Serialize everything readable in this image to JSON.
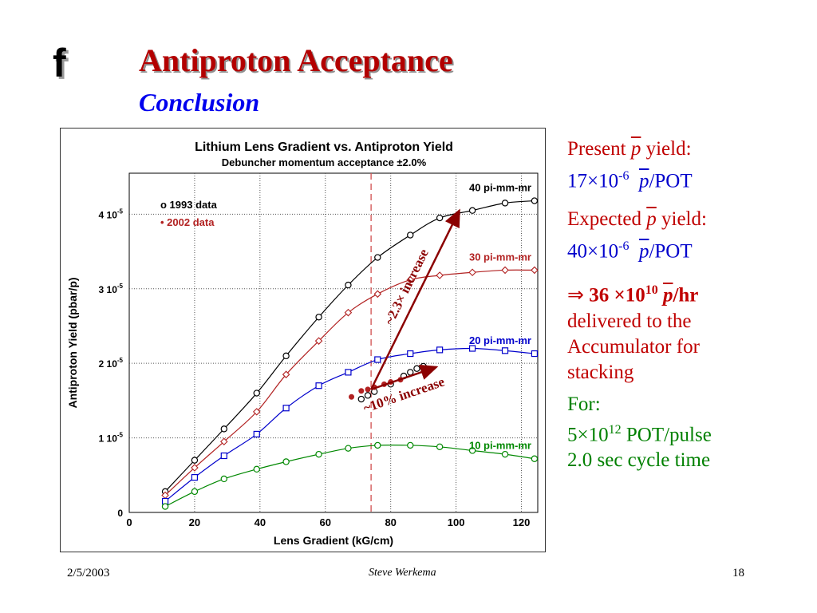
{
  "slide": {
    "logo": "f",
    "title": "Antiproton Acceptance",
    "subtitle": "Conclusion",
    "date": "2/5/2003",
    "author": "Steve Werkema",
    "page": "18"
  },
  "panel": {
    "present_label": "Present",
    "present_symbol": "p",
    "present_suffix": "yield:",
    "present_value_base": "17×10",
    "present_value_exp": "-6",
    "present_unit_symbol": "p",
    "present_unit": "/POT",
    "expected_label": "Expected",
    "expected_symbol": "p",
    "expected_suffix": "yield:",
    "expected_value_base": "40×10",
    "expected_value_exp": "-6",
    "expected_unit_symbol": "p",
    "expected_unit": "/POT",
    "arrow": "⇒",
    "rate_value_base": "36 ×10",
    "rate_value_exp": "10",
    "rate_unit_symbol": "p",
    "rate_unit": "/hr",
    "delivered_line1": "delivered to the",
    "delivered_line2": "Accumulator for",
    "delivered_line3": "stacking",
    "for_label": "For:",
    "pot_base": "5×10",
    "pot_exp": "12",
    "pot_unit": " POT/pulse",
    "cycle_time": "2.0 sec cycle time"
  },
  "colors": {
    "title": "#b30000",
    "subtitle": "#0000ee",
    "red_text": "#c00000",
    "green_text": "#008000",
    "arrow": "#8b0000",
    "marker_line": "#d05050"
  },
  "chart_data": {
    "type": "line",
    "title": "Lithium Lens Gradient vs. Antiproton Yield",
    "subtitle": "Debuncher momentum acceptance ±2.0%",
    "xlabel": "Lens Gradient (kG/cm)",
    "ylabel": "Antiproton Yield (pbar/p)",
    "xlim": [
      0,
      125
    ],
    "ylim": [
      0,
      4.55e-05
    ],
    "xticks": [
      "0",
      "20",
      "40",
      "60",
      "80",
      "100",
      "120"
    ],
    "yticks": [
      {
        "value": 0,
        "base": "0",
        "exp": ""
      },
      {
        "value": 1e-05,
        "base": "1 10",
        "exp": "-5"
      },
      {
        "value": 2e-05,
        "base": "2 10",
        "exp": "-5"
      },
      {
        "value": 3e-05,
        "base": "3 10",
        "exp": "-5"
      },
      {
        "value": 4e-05,
        "base": "4 10",
        "exp": "-5"
      }
    ],
    "grid": true,
    "legend": [
      {
        "name": "o 1993 data",
        "color": "#000000"
      },
      {
        "name": "• 2002 data",
        "color": "#b22222"
      }
    ],
    "series": [
      {
        "name": "40 pi-mm-mr",
        "color": "#000000",
        "marker": "circle",
        "x": [
          11,
          20,
          29,
          39,
          48,
          58,
          67,
          76,
          86,
          95,
          105,
          115,
          124
        ],
        "y": [
          2.8e-06,
          7e-06,
          1.12e-05,
          1.6e-05,
          2.1e-05,
          2.62e-05,
          3.05e-05,
          3.42e-05,
          3.72e-05,
          3.95e-05,
          4.05e-05,
          4.15e-05,
          4.18e-05
        ]
      },
      {
        "name": "30 pi-mm-mr",
        "color": "#b22222",
        "marker": "diamond",
        "x": [
          11,
          20,
          29,
          39,
          48,
          58,
          67,
          76,
          86,
          95,
          105,
          115,
          124
        ],
        "y": [
          2.3e-06,
          6e-06,
          9.5e-06,
          1.35e-05,
          1.85e-05,
          2.3e-05,
          2.68e-05,
          2.93e-05,
          3.12e-05,
          3.18e-05,
          3.22e-05,
          3.25e-05,
          3.25e-05
        ]
      },
      {
        "name": "20 pi-mm-mr",
        "color": "#0000cc",
        "marker": "square",
        "x": [
          11,
          20,
          29,
          39,
          48,
          58,
          67,
          76,
          86,
          95,
          105,
          115,
          124
        ],
        "y": [
          1.5e-06,
          4.7e-06,
          7.6e-06,
          1.05e-05,
          1.4e-05,
          1.7e-05,
          1.88e-05,
          2.05e-05,
          2.13e-05,
          2.18e-05,
          2.2e-05,
          2.17e-05,
          2.13e-05
        ]
      },
      {
        "name": "10 pi-mm-mr",
        "color": "#008800",
        "marker": "circle",
        "x": [
          11,
          20,
          29,
          39,
          48,
          58,
          67,
          76,
          86,
          95,
          105,
          115,
          124
        ],
        "y": [
          8e-07,
          2.8e-06,
          4.5e-06,
          5.8e-06,
          6.8e-06,
          7.8e-06,
          8.6e-06,
          9e-06,
          9e-06,
          8.8e-06,
          8.3e-06,
          7.8e-06,
          7.2e-06
        ]
      }
    ],
    "data_1993_points": {
      "x": [
        71,
        73,
        75,
        80,
        84,
        86,
        88,
        90
      ],
      "y": [
        1.52e-05,
        1.57e-05,
        1.62e-05,
        1.72e-05,
        1.83e-05,
        1.88e-05,
        1.93e-05,
        1.96e-05
      ]
    },
    "data_2002_points": {
      "x": [
        68,
        71,
        73,
        75,
        78,
        80,
        83
      ],
      "y": [
        1.55e-05,
        1.63e-05,
        1.65e-05,
        1.68e-05,
        1.72e-05,
        1.75e-05,
        1.78e-05
      ]
    },
    "vline_x": 74,
    "annotations": [
      {
        "text": "~2.3× increase",
        "color": "#8b0000",
        "from": [
          74,
          1.65e-05
        ],
        "to": [
          101,
          4.05e-05
        ]
      },
      {
        "text": "~10% increase",
        "color": "#8b0000",
        "from": [
          74,
          1.65e-05
        ],
        "to": [
          94,
          1.95e-05
        ]
      }
    ]
  }
}
